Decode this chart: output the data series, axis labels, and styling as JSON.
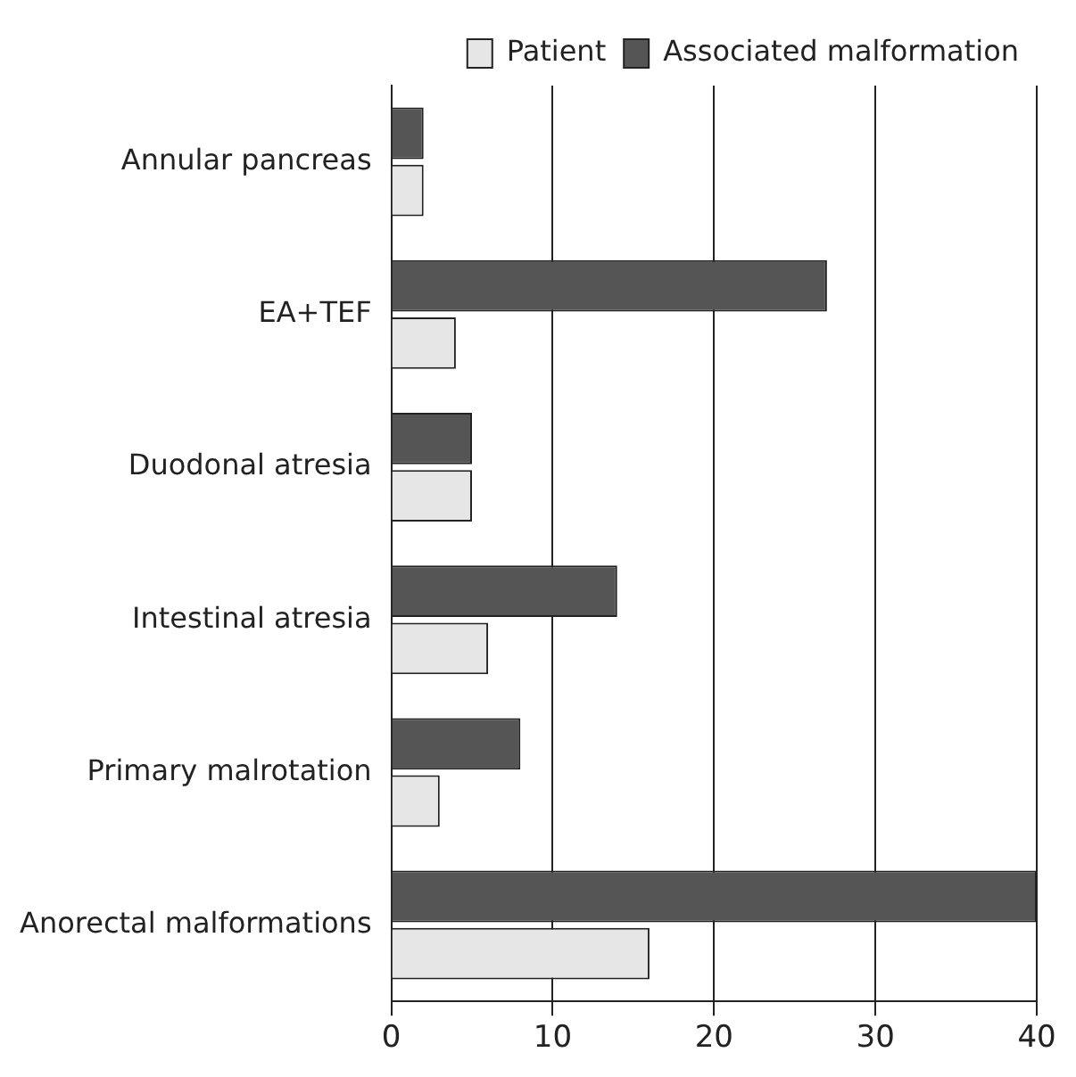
{
  "chart_data": {
    "type": "bar",
    "orientation": "horizontal",
    "categories": [
      "Annular pancreas",
      "EA+TEF",
      "Duodonal atresia",
      "Intestinal atresia",
      "Primary malrotation",
      "Anorectal malformations"
    ],
    "series": [
      {
        "name": "Patient",
        "color": "#e6e6e6",
        "values": [
          2,
          4,
          5,
          6,
          3,
          16
        ]
      },
      {
        "name": "Associated malformation",
        "color": "#555555",
        "values": [
          2,
          27,
          5,
          14,
          8,
          40
        ]
      }
    ],
    "xlim": [
      0,
      40
    ],
    "xticks": [
      0,
      10,
      20,
      30,
      40
    ],
    "grid": "x",
    "legend": "top right"
  }
}
